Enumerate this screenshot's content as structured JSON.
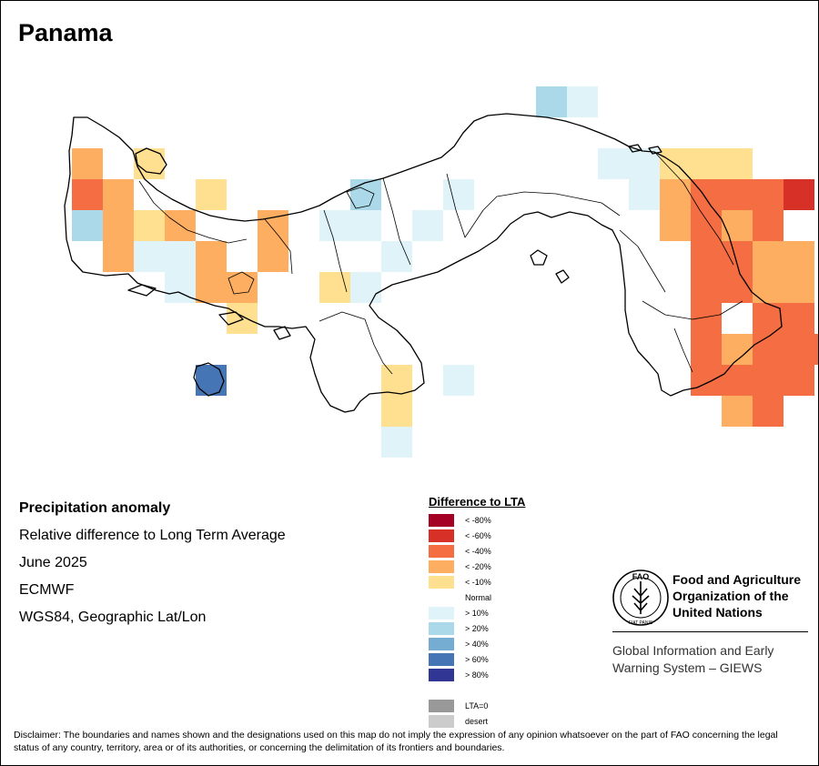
{
  "title": "Panama",
  "info": {
    "variable": "Precipitation anomaly",
    "description": "Relative difference to Long Term Average",
    "period": "June 2025",
    "source": "ECMWF",
    "projection": "WGS84, Geographic Lat/Lon"
  },
  "legend": {
    "title": "Difference to LTA",
    "items": [
      {
        "label": "< -80%",
        "color": "#a50026"
      },
      {
        "label": "< -60%",
        "color": "#d73027"
      },
      {
        "label": "< -40%",
        "color": "#f46d43"
      },
      {
        "label": "< -20%",
        "color": "#fdae61"
      },
      {
        "label": "< -10%",
        "color": "#fee090"
      },
      {
        "label": "Normal",
        "color": "#ffffff"
      },
      {
        "label": "> 10%",
        "color": "#e0f3f8"
      },
      {
        "label": "> 20%",
        "color": "#abd9e9"
      },
      {
        "label": "> 40%",
        "color": "#74add1"
      },
      {
        "label": "> 60%",
        "color": "#4575b4"
      },
      {
        "label": "> 80%",
        "color": "#313695"
      }
    ],
    "extra": [
      {
        "label": "LTA=0",
        "color": "#999999"
      },
      {
        "label": "desert",
        "color": "#cccccc"
      }
    ]
  },
  "logo": {
    "org_line1": "Food and Agriculture",
    "org_line2": "Organization of the",
    "org_line3": "United Nations",
    "giews_line1": "Global Information and Early",
    "giews_line2": "Warning System – GIEWS",
    "emblem_text": "FAO",
    "motto": "FIAT PANIS"
  },
  "disclaimer": "Disclaimer: The boundaries and names shown and the designations used on this map do not imply the expression of any opinion whatsoever on the part of FAO concerning the legal status of any country, territory, area or of its authorities, or concerning the delimitation of its frontiers and boundaries.",
  "map_cells": [
    {
      "col": 0,
      "row": 0,
      "cls": 3
    },
    {
      "col": 2,
      "row": 0,
      "cls": 4
    },
    {
      "col": 0,
      "row": 1,
      "cls": 2
    },
    {
      "col": 1,
      "row": 1,
      "cls": 3
    },
    {
      "col": 4,
      "row": 1,
      "cls": 4
    },
    {
      "col": 0,
      "row": 2,
      "cls": 7
    },
    {
      "col": 1,
      "row": 2,
      "cls": 3
    },
    {
      "col": 2,
      "row": 2,
      "cls": 4
    },
    {
      "col": 3,
      "row": 2,
      "cls": 3
    },
    {
      "col": 6,
      "row": 2,
      "cls": 3
    },
    {
      "col": 1,
      "row": 3,
      "cls": 3
    },
    {
      "col": 2,
      "row": 3,
      "cls": 6
    },
    {
      "col": 3,
      "row": 3,
      "cls": 6
    },
    {
      "col": 4,
      "row": 3,
      "cls": 3
    },
    {
      "col": 6,
      "row": 3,
      "cls": 3
    },
    {
      "col": 3,
      "row": 4,
      "cls": 6
    },
    {
      "col": 4,
      "row": 4,
      "cls": 3
    },
    {
      "col": 5,
      "row": 4,
      "cls": 3
    },
    {
      "col": 5,
      "row": 5,
      "cls": 4
    },
    {
      "col": 4,
      "row": 7,
      "cls": 9
    },
    {
      "col": 8,
      "row": 2,
      "cls": 6
    },
    {
      "col": 9,
      "row": 1,
      "cls": 7
    },
    {
      "col": 9,
      "row": 2,
      "cls": 6
    },
    {
      "col": 10,
      "row": 3,
      "cls": 6
    },
    {
      "col": 8,
      "row": 4,
      "cls": 4
    },
    {
      "col": 9,
      "row": 4,
      "cls": 6
    },
    {
      "col": 10,
      "row": 7,
      "cls": 4
    },
    {
      "col": 10,
      "row": 8,
      "cls": 4
    },
    {
      "col": 10,
      "row": 9,
      "cls": 6
    },
    {
      "col": 12,
      "row": 7,
      "cls": 6
    },
    {
      "col": 12,
      "row": 1,
      "cls": 6
    },
    {
      "col": 11,
      "row": 2,
      "cls": 6
    },
    {
      "col": 15,
      "row": -2,
      "cls": 7
    },
    {
      "col": 16,
      "row": -2,
      "cls": 6
    },
    {
      "col": 17,
      "row": 0,
      "cls": 6
    },
    {
      "col": 18,
      "row": 0,
      "cls": 6
    },
    {
      "col": 18,
      "row": 1,
      "cls": 6
    },
    {
      "col": 19,
      "row": 0,
      "cls": 4
    },
    {
      "col": 20,
      "row": 0,
      "cls": 4
    },
    {
      "col": 21,
      "row": 0,
      "cls": 4
    },
    {
      "col": 19,
      "row": 1,
      "cls": 3
    },
    {
      "col": 20,
      "row": 1,
      "cls": 2
    },
    {
      "col": 21,
      "row": 1,
      "cls": 2
    },
    {
      "col": 22,
      "row": 1,
      "cls": 2
    },
    {
      "col": 23,
      "row": 1,
      "cls": 1
    },
    {
      "col": 19,
      "row": 2,
      "cls": 3
    },
    {
      "col": 20,
      "row": 2,
      "cls": 2
    },
    {
      "col": 21,
      "row": 2,
      "cls": 3
    },
    {
      "col": 22,
      "row": 2,
      "cls": 2
    },
    {
      "col": 20,
      "row": 3,
      "cls": 2
    },
    {
      "col": 21,
      "row": 3,
      "cls": 2
    },
    {
      "col": 22,
      "row": 3,
      "cls": 3
    },
    {
      "col": 23,
      "row": 3,
      "cls": 3
    },
    {
      "col": 20,
      "row": 4,
      "cls": 2
    },
    {
      "col": 21,
      "row": 4,
      "cls": 2
    },
    {
      "col": 22,
      "row": 4,
      "cls": 3
    },
    {
      "col": 23,
      "row": 4,
      "cls": 3
    },
    {
      "col": 20,
      "row": 5,
      "cls": 2
    },
    {
      "col": 22,
      "row": 5,
      "cls": 2
    },
    {
      "col": 23,
      "row": 5,
      "cls": 2
    },
    {
      "col": 20,
      "row": 6,
      "cls": 2
    },
    {
      "col": 21,
      "row": 6,
      "cls": 3
    },
    {
      "col": 22,
      "row": 6,
      "cls": 2
    },
    {
      "col": 23,
      "row": 6,
      "cls": 2
    },
    {
      "col": 24,
      "row": 6,
      "cls": 2
    },
    {
      "col": 20,
      "row": 7,
      "cls": 2
    },
    {
      "col": 21,
      "row": 7,
      "cls": 2
    },
    {
      "col": 22,
      "row": 7,
      "cls": 2
    },
    {
      "col": 23,
      "row": 7,
      "cls": 2
    },
    {
      "col": 21,
      "row": 8,
      "cls": 3
    },
    {
      "col": 22,
      "row": 8,
      "cls": 2
    }
  ]
}
